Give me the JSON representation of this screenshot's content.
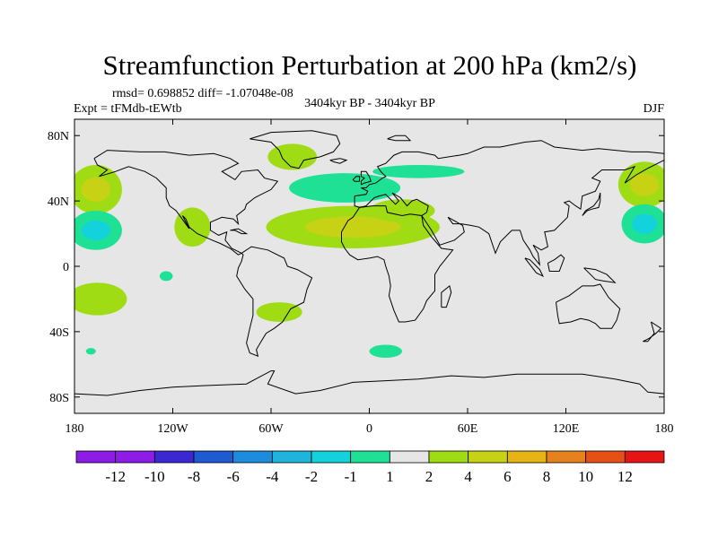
{
  "chart_data": {
    "type": "heatmap",
    "title": "Streamfunction Perturbation at 200 hPa (km2/s)",
    "stats_line": "rmsd= 0.698852 diff= -1.07048e-08",
    "experiment": "Expt = tFMdb-tEWtb",
    "period": "3404kyr BP - 3404kyr BP",
    "season": "DJF",
    "x_axis": {
      "range": [
        -180,
        180
      ],
      "ticks": [
        {
          "value": -180,
          "label": "180"
        },
        {
          "value": -120,
          "label": "120W"
        },
        {
          "value": -60,
          "label": "60W"
        },
        {
          "value": 0,
          "label": "0"
        },
        {
          "value": 60,
          "label": "60E"
        },
        {
          "value": 120,
          "label": "120E"
        },
        {
          "value": 180,
          "label": "180"
        }
      ]
    },
    "y_axis": {
      "range": [
        -90,
        90
      ],
      "ticks": [
        {
          "value": 80,
          "label": "80N"
        },
        {
          "value": 40,
          "label": "40N"
        },
        {
          "value": 0,
          "label": "0"
        },
        {
          "value": -40,
          "label": "40S"
        },
        {
          "value": -80,
          "label": "80S"
        }
      ]
    },
    "colorbar": {
      "labels": [
        "-12",
        "-10",
        "-8",
        "-6",
        "-4",
        "-2",
        "-1",
        "1",
        "2",
        "4",
        "6",
        "8",
        "10",
        "12"
      ],
      "colors": [
        "#8c1ce6",
        "#3c28d2",
        "#1e5ad2",
        "#1e8cdc",
        "#1eb4dc",
        "#14d2dc",
        "#1ee196",
        "#e6e6e6",
        "#a0dc14",
        "#c8d214",
        "#e6b414",
        "#e6821e",
        "#e65014",
        "#e61414"
      ]
    },
    "background_color": "#e6e6e6",
    "features": [
      {
        "name": "anomaly-central-pacific-nh",
        "value": 2,
        "lon": -167,
        "lat": 47,
        "rlon": 16,
        "rlat": 15,
        "core": 4
      },
      {
        "name": "anomaly-east-pacific-nh-negative",
        "value": -2,
        "lon": -167,
        "lat": 22,
        "rlon": 16,
        "rlat": 12,
        "core": -4
      },
      {
        "name": "anomaly-mexico",
        "value": 2,
        "lon": -108,
        "lat": 24,
        "rlon": 11,
        "rlat": 12
      },
      {
        "name": "anomaly-greenland",
        "value": 2,
        "lon": -47,
        "lat": 67,
        "rlon": 15,
        "rlat": 8
      },
      {
        "name": "anomaly-north-atlantic",
        "value": -2,
        "lon": -15,
        "lat": 48,
        "rlon": 34,
        "rlat": 9
      },
      {
        "name": "anomaly-europe-band",
        "value": -2,
        "lon": 30,
        "lat": 58,
        "rlon": 28,
        "rlat": 4
      },
      {
        "name": "anomaly-tropical-atlantic-africa",
        "value": 2,
        "lon": -10,
        "lat": 24,
        "rlon": 53,
        "rlat": 13,
        "core": 4
      },
      {
        "name": "anomaly-north-africa-tail",
        "value": 2,
        "lon": 20,
        "lat": 34,
        "rlon": 20,
        "rlat": 7
      },
      {
        "name": "anomaly-west-pacific-nh",
        "value": 2,
        "lon": 168,
        "lat": 50,
        "rlon": 16,
        "rlat": 14,
        "core": 4
      },
      {
        "name": "anomaly-west-pacific-nh-negative",
        "value": -2,
        "lon": 168,
        "lat": 26,
        "rlon": 14,
        "rlat": 12,
        "core": -4
      },
      {
        "name": "anomaly-south-pacific-west",
        "value": 2,
        "lon": -166,
        "lat": -20,
        "rlon": 18,
        "rlat": 10
      },
      {
        "name": "anomaly-south-pacific-patch",
        "value": -2,
        "lon": -124,
        "lat": -6,
        "rlon": 4,
        "rlat": 3
      },
      {
        "name": "anomaly-south-america",
        "value": 2,
        "lon": -55,
        "lat": -28,
        "rlon": 14,
        "rlat": 6
      },
      {
        "name": "anomaly-southern-ocean-west",
        "value": -2,
        "lon": -170,
        "lat": -52,
        "rlon": 3,
        "rlat": 2
      },
      {
        "name": "anomaly-southern-atlantic",
        "value": -2,
        "lon": 10,
        "lat": -52,
        "rlon": 10,
        "rlat": 4
      }
    ]
  }
}
